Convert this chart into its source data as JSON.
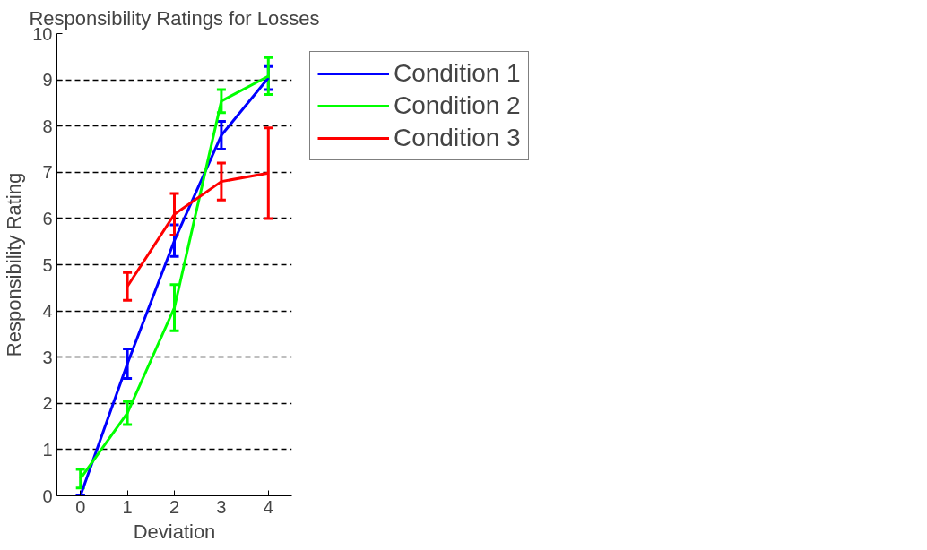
{
  "chart_data": {
    "type": "line",
    "title": "Responsibility Ratings for Losses",
    "xlabel": "Deviation",
    "ylabel": "Responsibility Rating",
    "x": [
      0,
      1,
      2,
      3,
      4
    ],
    "series": [
      {
        "name": "Condition 1",
        "color": "#0000ff",
        "values": [
          0,
          2.86,
          5.52,
          7.8,
          9.04
        ],
        "errors": [
          0,
          0.32,
          0.34,
          0.3,
          0.25
        ]
      },
      {
        "name": "Condition 2",
        "color": "#00ff00",
        "values": [
          0.37,
          1.79,
          4.07,
          8.54,
          9.08
        ],
        "errors": [
          0.2,
          0.25,
          0.5,
          0.25,
          0.4
        ]
      },
      {
        "name": "Condition 3",
        "color": "#ff0000",
        "values": [
          null,
          4.53,
          6.09,
          6.8,
          6.98
        ],
        "errors": [
          null,
          0.3,
          0.45,
          0.4,
          0.98
        ]
      }
    ],
    "xlim": [
      -0.5,
      4.5
    ],
    "ylim": [
      0,
      10
    ],
    "xticks": [
      0,
      1,
      2,
      3,
      4
    ],
    "yticks": [
      0,
      1,
      2,
      3,
      4,
      5,
      6,
      7,
      8,
      9,
      10
    ],
    "grid": "y",
    "legend": "top right",
    "marker": "none",
    "line_style": "solid"
  }
}
